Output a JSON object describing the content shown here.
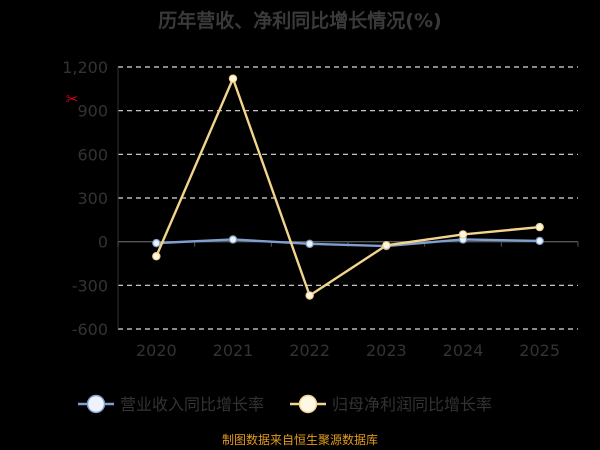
{
  "chart_data": {
    "type": "line",
    "title": "历年营收、净利同比增长情况(%)",
    "categories": [
      "2020",
      "2021",
      "2022",
      "2023",
      "2024",
      "2025"
    ],
    "ylim": [
      -600,
      1200
    ],
    "yticks": [
      -600,
      -300,
      0,
      300,
      600,
      900,
      1200
    ],
    "ytick_labels": [
      "-600",
      "-300",
      "0",
      "300",
      "600",
      "900",
      "1,200"
    ],
    "grid": true,
    "legend_position": "bottom",
    "series": [
      {
        "name": "营业收入同比增长率",
        "values": [
          -10,
          15,
          -15,
          -30,
          15,
          5
        ],
        "color": "#7f9fcf",
        "marker_fill": "#eef3fb"
      },
      {
        "name": "归母净利润同比增长率",
        "values": [
          -100,
          1120,
          -370,
          -25,
          50,
          100
        ],
        "color": "#f3d48d",
        "marker_fill": "#fdf8e6"
      }
    ]
  },
  "source": "制图数据来自恒生聚源数据库",
  "colors": {
    "background": "#000000",
    "title": "#3a3a3a",
    "axis_label": "#333333",
    "grid": "#dddddd",
    "source": "#e09a20",
    "watermark": "#d0021b"
  },
  "watermark_icon": "scissors-icon"
}
